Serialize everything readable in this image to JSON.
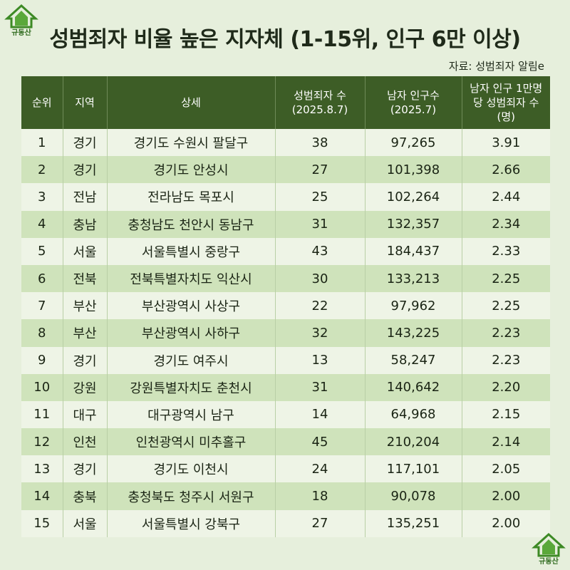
{
  "logo_text": "규동산",
  "title": "성범죄자 비율 높은 지자체 (1-15위, 인구 6만 이상)",
  "source": "자료: 성범죄자 알림e",
  "table": {
    "headers": [
      "순위",
      "지역",
      "상세",
      "성범죄자 수 (2025.8.7)",
      "남자 인구수 (2025.7)",
      "남자 인구 1만명 당 성범죄자 수 (명)"
    ],
    "rows": [
      [
        "1",
        "경기",
        "경기도 수원시 팔달구",
        "38",
        "97,265",
        "3.91"
      ],
      [
        "2",
        "경기",
        "경기도 안성시",
        "27",
        "101,398",
        "2.66"
      ],
      [
        "3",
        "전남",
        "전라남도 목포시",
        "25",
        "102,264",
        "2.44"
      ],
      [
        "4",
        "충남",
        "충청남도 천안시 동남구",
        "31",
        "132,357",
        "2.34"
      ],
      [
        "5",
        "서울",
        "서울특별시 중랑구",
        "43",
        "184,437",
        "2.33"
      ],
      [
        "6",
        "전북",
        "전북특별자치도 익산시",
        "30",
        "133,213",
        "2.25"
      ],
      [
        "7",
        "부산",
        "부산광역시 사상구",
        "22",
        "97,962",
        "2.25"
      ],
      [
        "8",
        "부산",
        "부산광역시 사하구",
        "32",
        "143,225",
        "2.23"
      ],
      [
        "9",
        "경기",
        "경기도 여주시",
        "13",
        "58,247",
        "2.23"
      ],
      [
        "10",
        "강원",
        "강원특별자치도 춘천시",
        "31",
        "140,642",
        "2.20"
      ],
      [
        "11",
        "대구",
        "대구광역시 남구",
        "14",
        "64,968",
        "2.15"
      ],
      [
        "12",
        "인천",
        "인천광역시 미추홀구",
        "45",
        "210,204",
        "2.14"
      ],
      [
        "13",
        "경기",
        "경기도 이천시",
        "24",
        "117,101",
        "2.05"
      ],
      [
        "14",
        "충북",
        "충청북도 청주시 서원구",
        "18",
        "90,078",
        "2.00"
      ],
      [
        "15",
        "서울",
        "서울특별시 강북구",
        "27",
        "135,251",
        "2.00"
      ]
    ]
  },
  "colors": {
    "header_bg": "#3d5d26",
    "row_light": "#eef4e6",
    "row_dark": "#cfe3bb",
    "page_bg": "#e6efdc"
  }
}
